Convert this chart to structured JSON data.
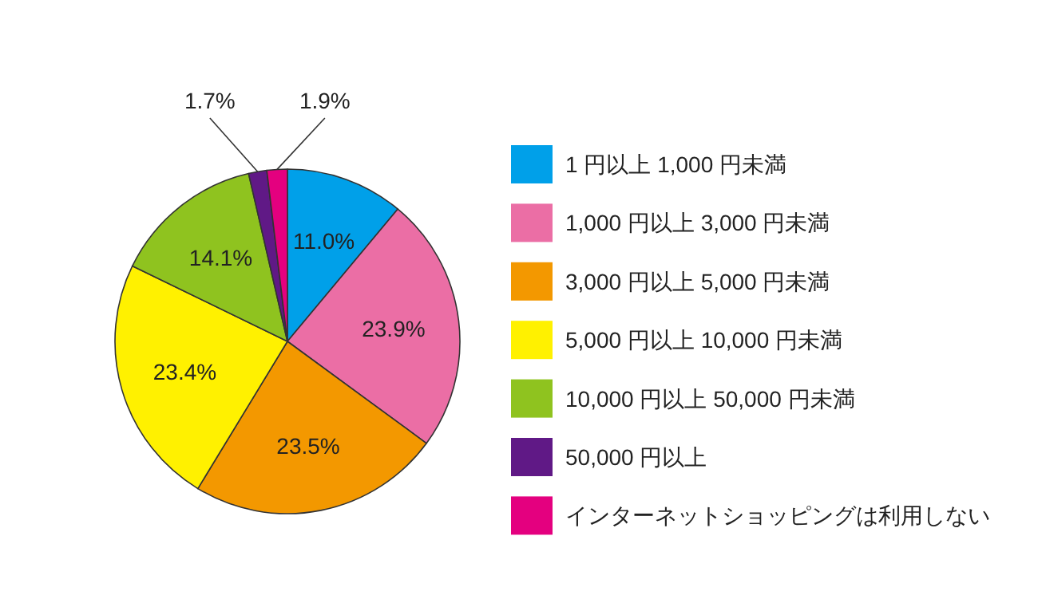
{
  "chart_data": {
    "type": "pie",
    "categories": [
      "1 円以上 1,000 円未満",
      "1,000 円以上 3,000 円未満",
      "3,000 円以上 5,000 円未満",
      "5,000 円以上 10,000 円未満",
      "10,000 円以上 50,000 円未満",
      "50,000 円以上",
      "インターネットショッピングは利用しない"
    ],
    "values": [
      11.0,
      23.9,
      23.5,
      23.4,
      14.1,
      1.7,
      1.9
    ],
    "colors": [
      "#00a0e9",
      "#eb6ea5",
      "#f39800",
      "#fff100",
      "#8fc31f",
      "#601986",
      "#e4007f"
    ],
    "value_labels": [
      "11.0%",
      "23.9%",
      "23.5%",
      "23.4%",
      "14.1%",
      "1.7%",
      "1.9%"
    ],
    "legend": "right"
  }
}
